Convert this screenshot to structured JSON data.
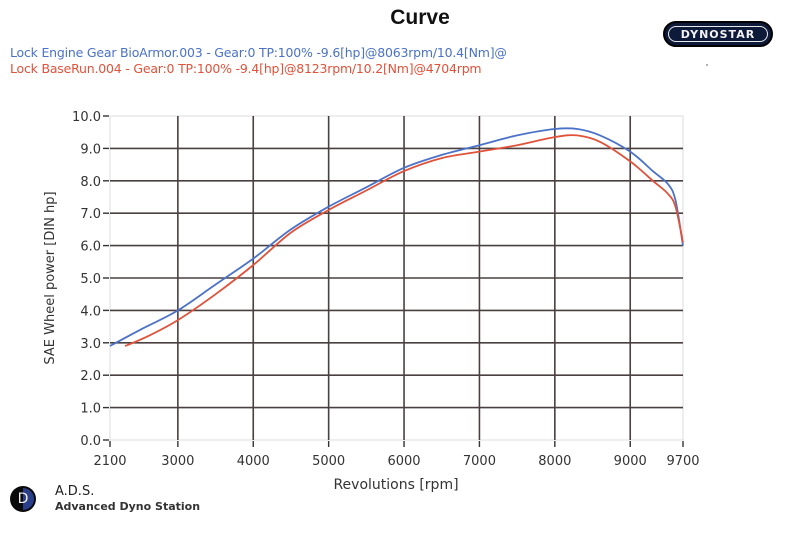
{
  "header": {
    "title": "Curve",
    "brand_logo": "DYNOSTAR"
  },
  "legend": [
    {
      "label": "Lock Engine Gear BioArmor.003 - Gear:0 TP:100%  -9.6[hp]@8063rpm/10.4[Nm]@",
      "color": "#4b72c8"
    },
    {
      "label": "Lock BaseRun.004 - Gear:0 TP:100%  -9.4[hp]@8123rpm/10.2[Nm]@4704rpm",
      "color": "#e0523a"
    }
  ],
  "footer": {
    "logo_icon": "ads-d-logo-icon",
    "logo_letter": "D",
    "title": "A.D.S.",
    "subtitle": "Advanced Dyno Station"
  },
  "chart_data": {
    "type": "line",
    "title": "Curve",
    "xlabel": "Revolutions [rpm]",
    "ylabel": "SAE Wheel power [DIN hp]",
    "xlim": [
      2100,
      9700
    ],
    "ylim": [
      0,
      10
    ],
    "xticks": [
      2100,
      3000,
      4000,
      5000,
      6000,
      7000,
      8000,
      9000,
      9700
    ],
    "xtick_labels": [
      "2100",
      "3000",
      "4000",
      "5000",
      "6000",
      "7000",
      "8000",
      "9000",
      "9700"
    ],
    "yticks": [
      0,
      1,
      2,
      3,
      4,
      5,
      6,
      7,
      8,
      9,
      10
    ],
    "ytick_labels": [
      "0.0",
      "1.0",
      "2.0",
      "3.0",
      "4.0",
      "5.0",
      "6.0",
      "7.0",
      "8.0",
      "9.0",
      "10.0"
    ],
    "grid": true,
    "legend_position": "top-left",
    "series": [
      {
        "name": "Lock Engine Gear BioArmor.003",
        "color": "#4b72c8",
        "x": [
          2100,
          2500,
          3000,
          3500,
          4000,
          4500,
          5000,
          5500,
          6000,
          6500,
          7000,
          7500,
          8000,
          8300,
          8600,
          9000,
          9300,
          9500,
          9600,
          9700
        ],
        "y": [
          2.9,
          3.4,
          4.0,
          4.8,
          5.6,
          6.5,
          7.2,
          7.8,
          8.4,
          8.8,
          9.1,
          9.4,
          9.6,
          9.6,
          9.4,
          8.9,
          8.3,
          7.9,
          7.4,
          6.0
        ]
      },
      {
        "name": "Lock BaseRun.004",
        "color": "#e0523a",
        "x": [
          2300,
          2600,
          3000,
          3500,
          4000,
          4500,
          5000,
          5500,
          6000,
          6500,
          7000,
          7500,
          8000,
          8300,
          8600,
          9000,
          9300,
          9500,
          9600,
          9700
        ],
        "y": [
          2.9,
          3.2,
          3.7,
          4.5,
          5.4,
          6.4,
          7.1,
          7.7,
          8.3,
          8.7,
          8.9,
          9.1,
          9.35,
          9.4,
          9.2,
          8.6,
          8.0,
          7.6,
          7.2,
          6.1
        ]
      }
    ]
  }
}
